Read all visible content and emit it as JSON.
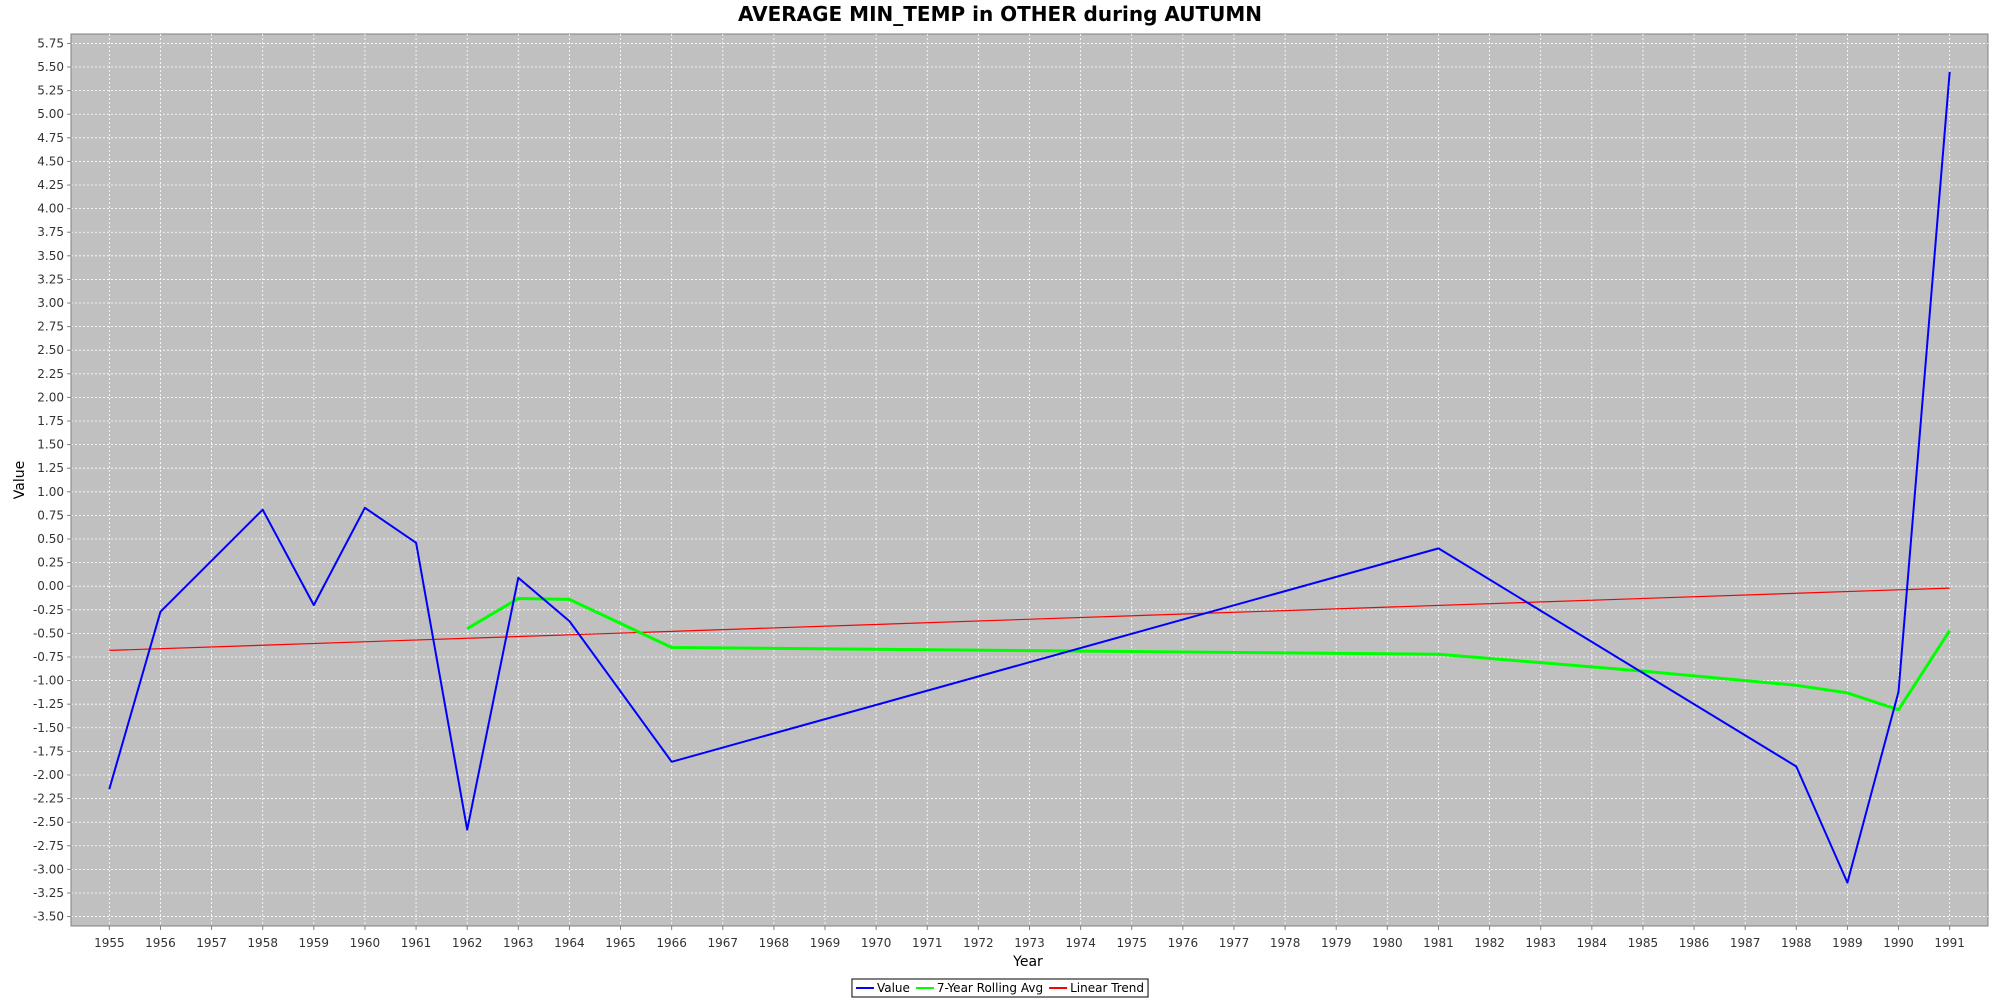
{
  "chart_data": {
    "type": "line",
    "title": "AVERAGE MIN_TEMP in OTHER during AUTUMN",
    "xlabel": "Year",
    "ylabel": "Value",
    "xlim": [
      1954.25,
      1991.75
    ],
    "ylim": [
      -3.6,
      5.85
    ],
    "x_ticks": [
      1955,
      1956,
      1957,
      1958,
      1959,
      1960,
      1961,
      1962,
      1963,
      1964,
      1965,
      1966,
      1967,
      1968,
      1969,
      1970,
      1971,
      1972,
      1973,
      1974,
      1975,
      1976,
      1977,
      1978,
      1979,
      1980,
      1981,
      1982,
      1983,
      1984,
      1985,
      1986,
      1987,
      1988,
      1989,
      1990,
      1991
    ],
    "y_ticks": [
      -3.5,
      -3.25,
      -3.0,
      -2.75,
      -2.5,
      -2.25,
      -2.0,
      -1.75,
      -1.5,
      -1.25,
      -1.0,
      -0.75,
      -0.5,
      -0.25,
      0.0,
      0.25,
      0.5,
      0.75,
      1.0,
      1.25,
      1.5,
      1.75,
      2.0,
      2.25,
      2.5,
      2.75,
      3.0,
      3.25,
      3.5,
      3.75,
      4.0,
      4.25,
      4.5,
      4.75,
      5.0,
      5.25,
      5.5,
      5.75
    ],
    "y_tick_labels": [
      "-3.50",
      "-3.25",
      "-3.00",
      "-2.75",
      "-2.50",
      "-2.25",
      "-2.00",
      "-1.75",
      "-1.50",
      "-1.25",
      "-1.00",
      "-0.75",
      "-0.50",
      "-0.25",
      "0.00",
      "0.25",
      "0.50",
      "0.75",
      "1.00",
      "1.25",
      "1.50",
      "1.75",
      "2.00",
      "2.25",
      "2.50",
      "2.75",
      "3.00",
      "3.25",
      "3.50",
      "3.75",
      "4.00",
      "4.25",
      "4.50",
      "4.75",
      "5.00",
      "5.25",
      "5.50",
      "5.75"
    ],
    "grid": true,
    "legend_position": "bottom-center",
    "series": [
      {
        "name": "Value",
        "color": "#0000ff",
        "points": [
          [
            1955,
            -2.15
          ],
          [
            1956,
            -0.27
          ],
          [
            1958,
            0.81
          ],
          [
            1959,
            -0.2
          ],
          [
            1960,
            0.83
          ],
          [
            1961,
            0.46
          ],
          [
            1962,
            -2.58
          ],
          [
            1963,
            0.09
          ],
          [
            1964,
            -0.37
          ],
          [
            1966,
            -1.86
          ],
          [
            1981,
            0.4
          ],
          [
            1988,
            -1.91
          ],
          [
            1989,
            -3.14
          ],
          [
            1990,
            -1.12
          ],
          [
            1991,
            5.45
          ]
        ]
      },
      {
        "name": "7-Year Rolling Avg",
        "color": "#00ff00",
        "points": [
          [
            1962,
            -0.45
          ],
          [
            1963,
            -0.13
          ],
          [
            1964,
            -0.14
          ],
          [
            1966,
            -0.65
          ],
          [
            1981,
            -0.72
          ],
          [
            1985,
            -0.9
          ],
          [
            1988,
            -1.05
          ],
          [
            1989,
            -1.13
          ],
          [
            1990,
            -1.31
          ],
          [
            1991,
            -0.47
          ]
        ]
      },
      {
        "name": "Linear Trend",
        "color": "#ff0000",
        "points": [
          [
            1955,
            -0.68
          ],
          [
            1991,
            -0.02
          ]
        ]
      }
    ]
  }
}
